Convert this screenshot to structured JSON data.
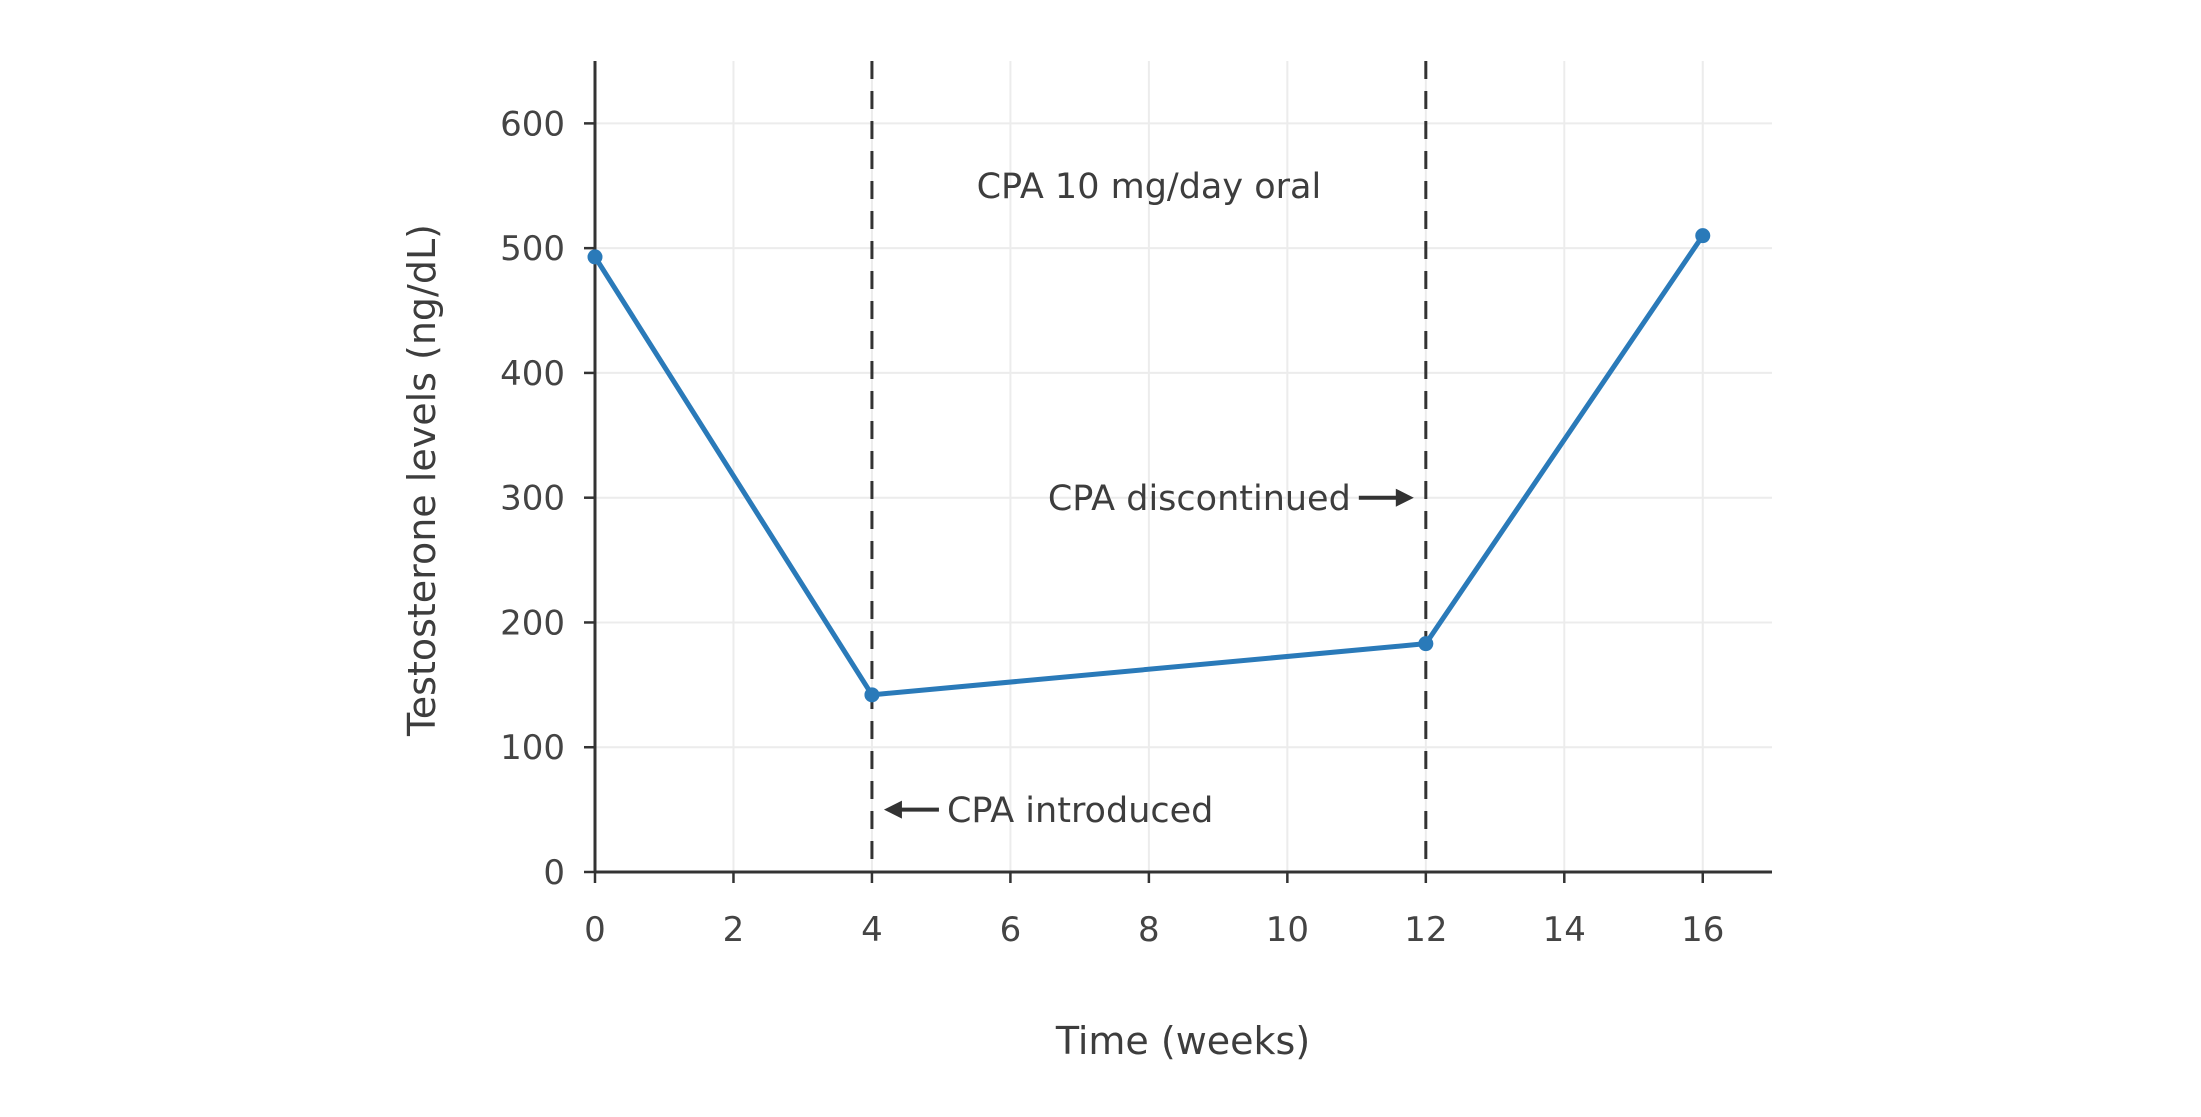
{
  "chart_data": {
    "type": "line",
    "title": "",
    "xlabel": "Time (weeks)",
    "ylabel": "Testosterone levels (ng/dL)",
    "x": [
      0,
      4,
      12,
      16
    ],
    "y": [
      493,
      142,
      183,
      510
    ],
    "series_name": "Testosterone levels",
    "xlim": [
      0,
      17
    ],
    "ylim": [
      0,
      650
    ],
    "xticks": [
      0,
      2,
      4,
      6,
      8,
      10,
      12,
      14,
      16
    ],
    "yticks": [
      0,
      100,
      200,
      300,
      400,
      500,
      600
    ],
    "grid": true,
    "legend": "none",
    "colors": {
      "line": "#2a7ab9",
      "marker": "#2a7ab9",
      "grid": "#ececec",
      "axis": "#333333",
      "text": "#444444",
      "annotation": "#3d3d3d",
      "arrow": "#333333",
      "background": "#ffffff"
    },
    "vlines": [
      {
        "x": 4,
        "style": "dashed",
        "color": "#333333"
      },
      {
        "x": 12,
        "style": "dashed",
        "color": "#333333"
      }
    ],
    "annotations": [
      {
        "id": "treatment-period-label",
        "text": "CPA 10 mg/day oral",
        "x": 8,
        "y": 550,
        "arrow": "none"
      },
      {
        "id": "cpa-discontinued-label",
        "text": "CPA discontinued",
        "x": 12,
        "y": 300,
        "arrow": "right"
      },
      {
        "id": "cpa-introduced-label",
        "text": "CPA introduced",
        "x": 4,
        "y": 50,
        "arrow": "left"
      }
    ]
  }
}
